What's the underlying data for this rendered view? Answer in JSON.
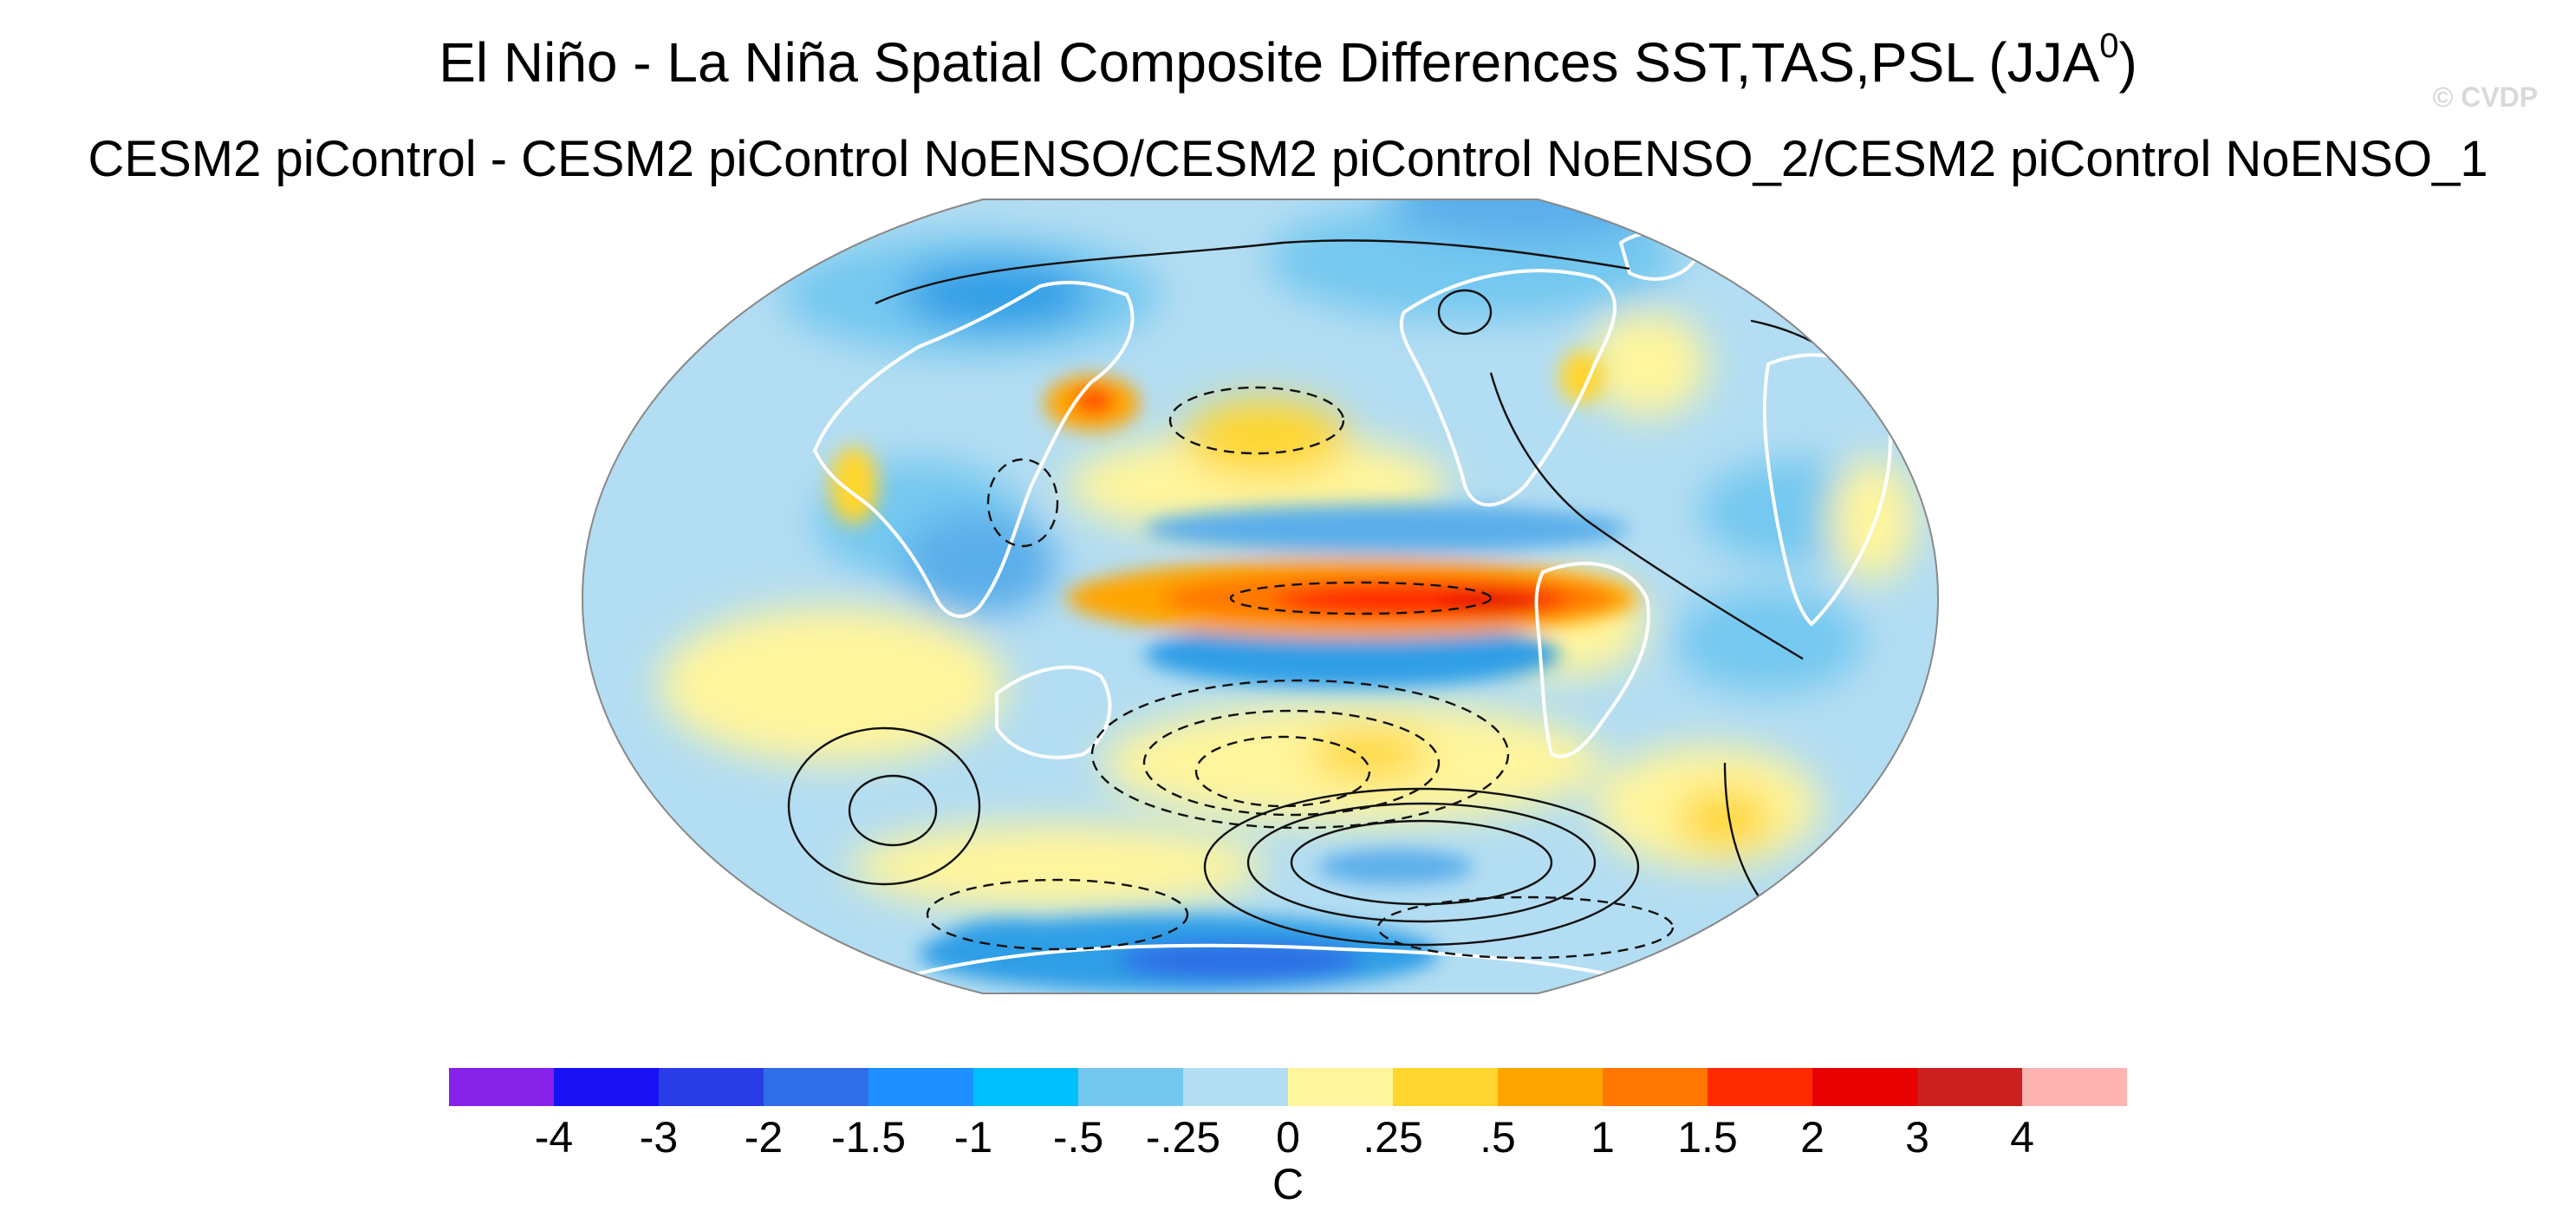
{
  "title_main": "El Niño - La Niña Spatial Composite Differences SST,TAS,PSL (JJA",
  "title_superscript": "0",
  "title_close": ")",
  "subtitle": "CESM2 piControl - CESM2 piControl NoENSO/CESM2 piControl NoENSO_2/CESM2 piControl NoENSO_1",
  "watermark": "© CVDP",
  "map": {
    "projection": "Robinson (Pacific-centered)",
    "variable": "SST/TAS shaded, PSL contours",
    "colors": {
      "ocean_background": "#b3ddf2",
      "coastline": "#ffffff",
      "contour": "#111111"
    },
    "features": [
      {
        "name": "nino-warm-tongue",
        "label": "Equatorial Pacific warm anomaly",
        "value_max": 3
      },
      {
        "name": "off-equator-cool-band",
        "label": "Off-equatorial Pacific cool anomaly",
        "value_min": -1
      },
      {
        "name": "kuroshio-warm",
        "label": "Western North Pacific warm anomaly",
        "value_max": 1.5
      },
      {
        "name": "southern-ocean-cool",
        "label": "Southern Ocean cool anomaly",
        "value_min": -2
      }
    ]
  },
  "colorbar": {
    "unit": "C",
    "tick_labels": [
      "-4",
      "-3",
      "-2",
      "-1.5",
      "-1",
      "-.5",
      "-.25",
      "0",
      ".25",
      ".5",
      "1",
      "1.5",
      "2",
      "3",
      "4"
    ],
    "colors": [
      "#8621e8",
      "#1a12f5",
      "#2a3ce6",
      "#2f6ee6",
      "#1e90ff",
      "#00bfff",
      "#74c8f0",
      "#b3ddf2",
      "#fff59c",
      "#ffd62f",
      "#ffa500",
      "#ff7700",
      "#ff2a00",
      "#e60000",
      "#cc1f1f",
      "#ffb3b3"
    ]
  }
}
